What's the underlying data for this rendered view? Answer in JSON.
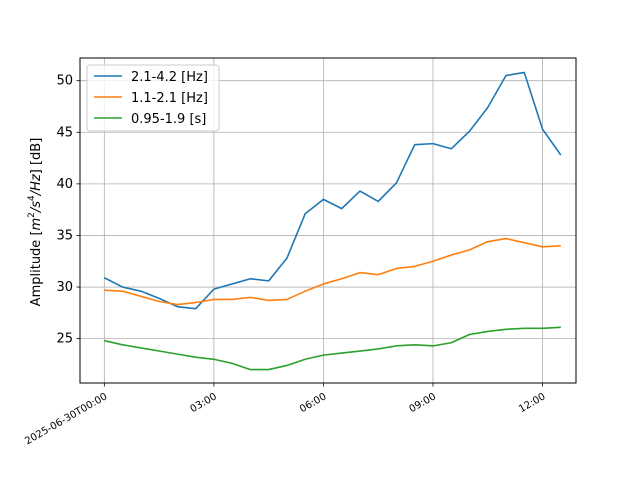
{
  "chart_data": {
    "type": "line",
    "title": "",
    "xlabel": "",
    "ylabel": "Amplitude [m²/s⁴/Hz] [dB]",
    "ylabel_parts": {
      "prefix": "Amplitude [",
      "m": "m",
      "m_sup": "2",
      "s": "/s",
      "s_sup": "4",
      "hz": "/Hz",
      "suffix": "] [dB]"
    },
    "grid": true,
    "legend_position": "upper-left",
    "xlim": [
      "2025-06-29T23:20",
      "2025-06-30T12:55"
    ],
    "ylim": [
      20.7,
      52.2
    ],
    "x_ticks": [
      {
        "value": "2025-06-30T00:00",
        "label": "2025-06-30T00:00"
      },
      {
        "value": "2025-06-30T03:00",
        "label": "03:00"
      },
      {
        "value": "2025-06-30T06:00",
        "label": "06:00"
      },
      {
        "value": "2025-06-30T09:00",
        "label": "09:00"
      },
      {
        "value": "2025-06-30T12:00",
        "label": "12:00"
      }
    ],
    "y_ticks": [
      25,
      30,
      35,
      40,
      45,
      50
    ],
    "x": [
      "2025-06-30T00:00",
      "2025-06-30T00:30",
      "2025-06-30T01:00",
      "2025-06-30T01:30",
      "2025-06-30T02:00",
      "2025-06-30T02:30",
      "2025-06-30T03:00",
      "2025-06-30T03:30",
      "2025-06-30T04:00",
      "2025-06-30T04:30",
      "2025-06-30T05:00",
      "2025-06-30T05:30",
      "2025-06-30T06:00",
      "2025-06-30T06:30",
      "2025-06-30T07:00",
      "2025-06-30T07:30",
      "2025-06-30T08:00",
      "2025-06-30T08:30",
      "2025-06-30T09:00",
      "2025-06-30T09:30",
      "2025-06-30T10:00",
      "2025-06-30T10:30",
      "2025-06-30T11:00",
      "2025-06-30T11:30",
      "2025-06-30T12:00",
      "2025-06-30T12:30"
    ],
    "series": [
      {
        "name": "2.1-4.2 [Hz]",
        "color": "#1f77b4",
        "values": [
          30.9,
          30.0,
          29.6,
          28.9,
          28.1,
          27.9,
          29.8,
          30.3,
          30.8,
          30.6,
          32.8,
          37.1,
          38.5,
          37.6,
          39.3,
          38.3,
          40.1,
          43.8,
          43.9,
          43.4,
          45.1,
          47.4,
          50.5,
          50.8,
          45.3,
          42.8
        ]
      },
      {
        "name": "1.1-2.1 [Hz]",
        "color": "#ff7f0e",
        "values": [
          29.7,
          29.6,
          29.1,
          28.6,
          28.3,
          28.5,
          28.8,
          28.8,
          29.0,
          28.7,
          28.8,
          29.6,
          30.3,
          30.8,
          31.4,
          31.2,
          31.8,
          32.0,
          32.5,
          33.1,
          33.6,
          34.4,
          34.7,
          34.3,
          33.9,
          34.0
        ]
      },
      {
        "name": "0.95-1.9 [s]",
        "color": "#2ca02c",
        "values": [
          24.8,
          24.4,
          24.1,
          23.8,
          23.5,
          23.2,
          23.0,
          22.6,
          22.0,
          22.0,
          22.4,
          23.0,
          23.4,
          23.6,
          23.8,
          24.0,
          24.3,
          24.4,
          24.3,
          24.6,
          25.4,
          25.7,
          25.9,
          26.0,
          26.0,
          26.1
        ]
      }
    ]
  }
}
